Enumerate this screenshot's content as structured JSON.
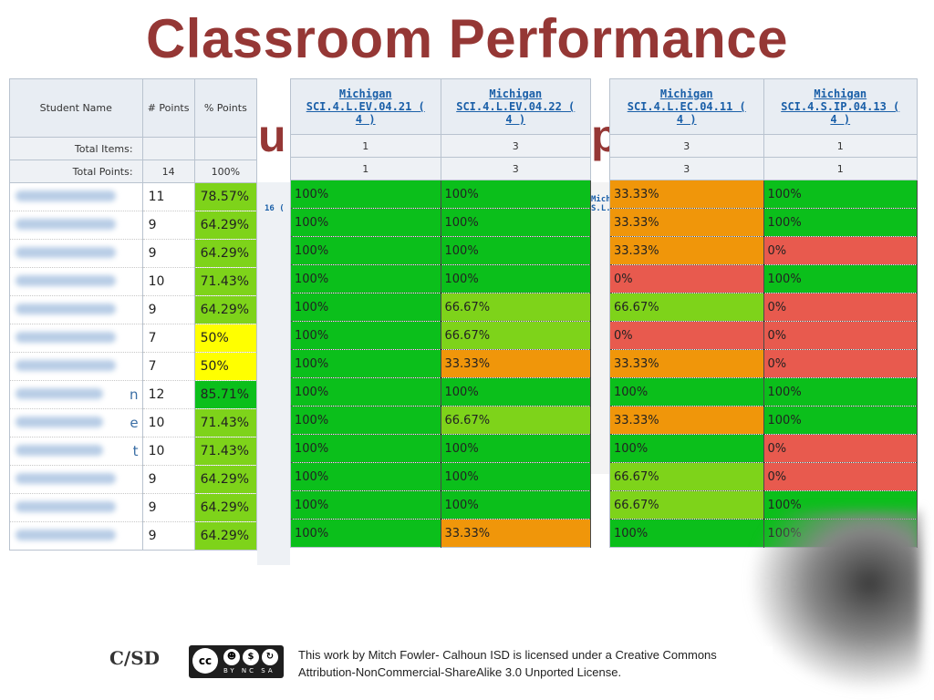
{
  "slide": {
    "title": "Classroom Performance",
    "subtitle_peek_a": "u",
    "subtitle_peek_b": "p"
  },
  "colors": {
    "title": "#953735",
    "green": "#0bbf1b",
    "light_green": "#7ed31a",
    "yellow": "#ffff00",
    "orange": "#f0960a",
    "red": "#e85a4e"
  },
  "roster": {
    "headers": {
      "name": "Student Name",
      "points": "# Points",
      "percent": "% Points"
    },
    "total_items_label": "Total Items:",
    "total_points_label": "Total Points:",
    "total_points_value": "14",
    "total_points_pct": "100%",
    "rows": [
      {
        "name_tail": "",
        "points": "11",
        "pct": "78.57%",
        "color": "light_green"
      },
      {
        "name_tail": "",
        "points": "9",
        "pct": "64.29%",
        "color": "light_green"
      },
      {
        "name_tail": "",
        "points": "9",
        "pct": "64.29%",
        "color": "light_green"
      },
      {
        "name_tail": "",
        "points": "10",
        "pct": "71.43%",
        "color": "light_green"
      },
      {
        "name_tail": "",
        "points": "9",
        "pct": "64.29%",
        "color": "light_green"
      },
      {
        "name_tail": "",
        "points": "7",
        "pct": "50%",
        "color": "yellow"
      },
      {
        "name_tail": "",
        "points": "7",
        "pct": "50%",
        "color": "yellow"
      },
      {
        "name_tail": "n",
        "points": "12",
        "pct": "85.71%",
        "color": "green"
      },
      {
        "name_tail": "e",
        "points": "10",
        "pct": "71.43%",
        "color": "light_green"
      },
      {
        "name_tail": "t",
        "points": "10",
        "pct": "71.43%",
        "color": "light_green"
      },
      {
        "name_tail": "",
        "points": "9",
        "pct": "64.29%",
        "color": "light_green"
      },
      {
        "name_tail": "",
        "points": "9",
        "pct": "64.29%",
        "color": "light_green"
      },
      {
        "name_tail": "",
        "points": "9",
        "pct": "64.29%",
        "color": "light_green"
      }
    ]
  },
  "standards_a": {
    "columns": [
      {
        "line1": "Michigan",
        "line2": "SCI.4.L.EV.04.21 (",
        "line3": "4 )",
        "items": "1",
        "points": "1"
      },
      {
        "line1": "Michigan",
        "line2": "SCI.4.L.EV.04.22 (",
        "line3": "4 )",
        "items": "3",
        "points": "3"
      }
    ],
    "rows": [
      [
        {
          "v": "100%",
          "c": "green"
        },
        {
          "v": "100%",
          "c": "green"
        }
      ],
      [
        {
          "v": "100%",
          "c": "green"
        },
        {
          "v": "100%",
          "c": "green"
        }
      ],
      [
        {
          "v": "100%",
          "c": "green"
        },
        {
          "v": "100%",
          "c": "green"
        }
      ],
      [
        {
          "v": "100%",
          "c": "green"
        },
        {
          "v": "100%",
          "c": "green"
        }
      ],
      [
        {
          "v": "100%",
          "c": "green"
        },
        {
          "v": "66.67%",
          "c": "light_green"
        }
      ],
      [
        {
          "v": "100%",
          "c": "green"
        },
        {
          "v": "66.67%",
          "c": "light_green"
        }
      ],
      [
        {
          "v": "100%",
          "c": "green"
        },
        {
          "v": "33.33%",
          "c": "orange"
        }
      ],
      [
        {
          "v": "100%",
          "c": "green"
        },
        {
          "v": "100%",
          "c": "green"
        }
      ],
      [
        {
          "v": "100%",
          "c": "green"
        },
        {
          "v": "66.67%",
          "c": "light_green"
        }
      ],
      [
        {
          "v": "100%",
          "c": "green"
        },
        {
          "v": "100%",
          "c": "green"
        }
      ],
      [
        {
          "v": "100%",
          "c": "green"
        },
        {
          "v": "100%",
          "c": "green"
        }
      ],
      [
        {
          "v": "100%",
          "c": "green"
        },
        {
          "v": "100%",
          "c": "green"
        }
      ],
      [
        {
          "v": "100%",
          "c": "green"
        },
        {
          "v": "33.33%",
          "c": "orange"
        }
      ]
    ]
  },
  "standards_b": {
    "columns": [
      {
        "line1": "Michigan",
        "line2": "SCI.4.L.EC.04.11 (",
        "line3": "4 )",
        "items": "3",
        "points": "3"
      },
      {
        "line1": "Michigan",
        "line2": "SCI.4.S.IP.04.13 (",
        "line3": "4 )",
        "items": "1",
        "points": "1"
      }
    ],
    "rows": [
      [
        {
          "v": "33.33%",
          "c": "orange"
        },
        {
          "v": "100%",
          "c": "green"
        }
      ],
      [
        {
          "v": "33.33%",
          "c": "orange"
        },
        {
          "v": "100%",
          "c": "green"
        }
      ],
      [
        {
          "v": "33.33%",
          "c": "orange"
        },
        {
          "v": "0%",
          "c": "red"
        }
      ],
      [
        {
          "v": "0%",
          "c": "red"
        },
        {
          "v": "100%",
          "c": "green"
        }
      ],
      [
        {
          "v": "66.67%",
          "c": "light_green"
        },
        {
          "v": "0%",
          "c": "red"
        }
      ],
      [
        {
          "v": "0%",
          "c": "red"
        },
        {
          "v": "0%",
          "c": "red"
        }
      ],
      [
        {
          "v": "33.33%",
          "c": "orange"
        },
        {
          "v": "0%",
          "c": "red"
        }
      ],
      [
        {
          "v": "100%",
          "c": "green"
        },
        {
          "v": "100%",
          "c": "green"
        }
      ],
      [
        {
          "v": "33.33%",
          "c": "orange"
        },
        {
          "v": "100%",
          "c": "green"
        }
      ],
      [
        {
          "v": "100%",
          "c": "green"
        },
        {
          "v": "0%",
          "c": "red"
        }
      ],
      [
        {
          "v": "66.67%",
          "c": "light_green"
        },
        {
          "v": "0%",
          "c": "red"
        }
      ],
      [
        {
          "v": "66.67%",
          "c": "light_green"
        },
        {
          "v": "100%",
          "c": "green"
        }
      ],
      [
        {
          "v": "100%",
          "c": "green"
        },
        {
          "v": "100%",
          "c": "green"
        }
      ]
    ]
  },
  "peek_text": {
    "a": "16 (",
    "b": "Mich",
    "c": "S.L.E"
  },
  "footer": {
    "org_logo": "C/SD",
    "cc_badge": "cc",
    "cc_tags": "BY NC SA",
    "license_line1": "This work by Mitch Fowler- Calhoun ISD is licensed under a Creative Commons",
    "license_line2": "Attribution-NonCommercial-ShareAlike 3.0 Unported License."
  }
}
